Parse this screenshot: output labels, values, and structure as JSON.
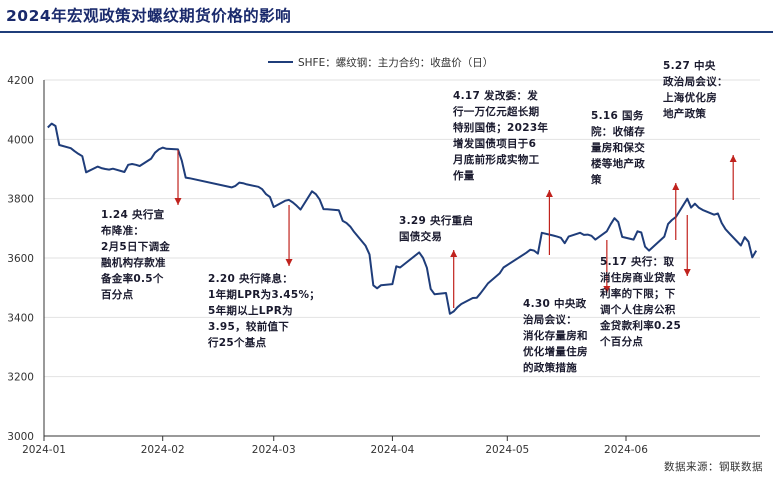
{
  "title": "2024年宏观政策对螺纹期货价格的影响",
  "source": "数据来源：钢联数据",
  "colors": {
    "line": "#1f3d7a",
    "arrow": "#c0221d",
    "title": "#1a2a6c"
  },
  "chart_data": {
    "type": "line",
    "legend": "SHFE：螺纹钢：主力合约：收盘价（日）",
    "ylim": [
      3000,
      4200
    ],
    "yticks": [
      3000,
      3200,
      3400,
      3600,
      3800,
      4000,
      4200
    ],
    "xticks": [
      "2024-01",
      "2024-02",
      "2024-03",
      "2024-04",
      "2024-05",
      "2024-06"
    ],
    "x_start": "2024-01-01",
    "series": [
      {
        "name": "SHFE：螺纹钢：主力合约：收盘价（日）",
        "values": [
          [
            "2024-01-02",
            4040
          ],
          [
            "2024-01-03",
            4053
          ],
          [
            "2024-01-04",
            4045
          ],
          [
            "2024-01-05",
            3981
          ],
          [
            "2024-01-08",
            3970
          ],
          [
            "2024-01-09",
            3960
          ],
          [
            "2024-01-10",
            3951
          ],
          [
            "2024-01-11",
            3943
          ],
          [
            "2024-01-12",
            3889
          ],
          [
            "2024-01-15",
            3908
          ],
          [
            "2024-01-16",
            3903
          ],
          [
            "2024-01-17",
            3900
          ],
          [
            "2024-01-18",
            3898
          ],
          [
            "2024-01-19",
            3901
          ],
          [
            "2024-01-22",
            3890
          ],
          [
            "2024-01-23",
            3914
          ],
          [
            "2024-01-24",
            3917
          ],
          [
            "2024-01-25",
            3914
          ],
          [
            "2024-01-26",
            3910
          ],
          [
            "2024-01-29",
            3935
          ],
          [
            "2024-01-30",
            3955
          ],
          [
            "2024-01-31",
            3966
          ],
          [
            "2024-02-01",
            3972
          ],
          [
            "2024-02-02",
            3968
          ],
          [
            "2024-02-05",
            3966
          ],
          [
            "2024-02-06",
            3928
          ],
          [
            "2024-02-07",
            3871
          ],
          [
            "2024-02-08",
            3869
          ],
          [
            "2024-02-19",
            3838
          ],
          [
            "2024-02-20",
            3843
          ],
          [
            "2024-02-21",
            3854
          ],
          [
            "2024-02-22",
            3852
          ],
          [
            "2024-02-23",
            3848
          ],
          [
            "2024-02-26",
            3840
          ],
          [
            "2024-02-27",
            3832
          ],
          [
            "2024-02-28",
            3815
          ],
          [
            "2024-02-29",
            3806
          ],
          [
            "2024-03-01",
            3772
          ],
          [
            "2024-03-04",
            3793
          ],
          [
            "2024-03-05",
            3796
          ],
          [
            "2024-03-06",
            3787
          ],
          [
            "2024-03-07",
            3776
          ],
          [
            "2024-03-08",
            3763
          ],
          [
            "2024-03-11",
            3825
          ],
          [
            "2024-03-12",
            3815
          ],
          [
            "2024-03-13",
            3797
          ],
          [
            "2024-03-14",
            3765
          ],
          [
            "2024-03-15",
            3764
          ],
          [
            "2024-03-18",
            3761
          ],
          [
            "2024-03-19",
            3725
          ],
          [
            "2024-03-20",
            3718
          ],
          [
            "2024-03-21",
            3706
          ],
          [
            "2024-03-22",
            3688
          ],
          [
            "2024-03-25",
            3641
          ],
          [
            "2024-03-26",
            3612
          ],
          [
            "2024-03-27",
            3508
          ],
          [
            "2024-03-28",
            3498
          ],
          [
            "2024-03-29",
            3508
          ],
          [
            "2024-04-01",
            3512
          ],
          [
            "2024-04-02",
            3572
          ],
          [
            "2024-04-03",
            3568
          ],
          [
            "2024-04-08",
            3619
          ],
          [
            "2024-04-09",
            3600
          ],
          [
            "2024-04-10",
            3567
          ],
          [
            "2024-04-11",
            3496
          ],
          [
            "2024-04-12",
            3478
          ],
          [
            "2024-04-15",
            3482
          ],
          [
            "2024-04-16",
            3412
          ],
          [
            "2024-04-17",
            3420
          ],
          [
            "2024-04-18",
            3434
          ],
          [
            "2024-04-19",
            3445
          ],
          [
            "2024-04-22",
            3465
          ],
          [
            "2024-04-23",
            3466
          ],
          [
            "2024-04-24",
            3481
          ],
          [
            "2024-04-25",
            3498
          ],
          [
            "2024-04-26",
            3515
          ],
          [
            "2024-04-29",
            3548
          ],
          [
            "2024-04-30",
            3568
          ],
          [
            "2024-05-06",
            3618
          ],
          [
            "2024-05-07",
            3628
          ],
          [
            "2024-05-08",
            3625
          ],
          [
            "2024-05-09",
            3615
          ],
          [
            "2024-05-10",
            3685
          ],
          [
            "2024-05-13",
            3676
          ],
          [
            "2024-05-14",
            3672
          ],
          [
            "2024-05-15",
            3668
          ],
          [
            "2024-05-16",
            3650
          ],
          [
            "2024-05-17",
            3672
          ],
          [
            "2024-05-20",
            3685
          ],
          [
            "2024-05-21",
            3678
          ],
          [
            "2024-05-22",
            3679
          ],
          [
            "2024-05-23",
            3675
          ],
          [
            "2024-05-24",
            3662
          ],
          [
            "2024-05-27",
            3690
          ],
          [
            "2024-05-28",
            3714
          ],
          [
            "2024-05-29",
            3734
          ],
          [
            "2024-05-30",
            3721
          ],
          [
            "2024-05-31",
            3671
          ],
          [
            "2024-06-03",
            3662
          ],
          [
            "2024-06-04",
            3690
          ],
          [
            "2024-06-05",
            3686
          ],
          [
            "2024-06-06",
            3638
          ],
          [
            "2024-06-07",
            3625
          ],
          [
            "2024-06-11",
            3672
          ],
          [
            "2024-06-12",
            3715
          ],
          [
            "2024-06-13",
            3728
          ],
          [
            "2024-06-14",
            3738
          ],
          [
            "2024-06-17",
            3800
          ],
          [
            "2024-06-18",
            3770
          ],
          [
            "2024-06-19",
            3783
          ],
          [
            "2024-06-20",
            3770
          ],
          [
            "2024-06-21",
            3762
          ],
          [
            "2024-06-24",
            3746
          ],
          [
            "2024-06-25",
            3750
          ],
          [
            "2024-06-26",
            3718
          ],
          [
            "2024-06-27",
            3697
          ],
          [
            "2024-06-28",
            3683
          ],
          [
            "2024-07-01",
            3642
          ],
          [
            "2024-07-02",
            3670
          ],
          [
            "2024-07-03",
            3655
          ],
          [
            "2024-07-04",
            3602
          ],
          [
            "2024-07-05",
            3625
          ]
        ]
      }
    ],
    "events": [
      {
        "date": "2024-02-05",
        "direction": "down",
        "label": "1.24 央行宣\n布降准：\n2月5日下调金\n融机构存款准\n备金率0.5个\n百分点"
      },
      {
        "date": "2024-03-05",
        "direction": "down",
        "label": "2.20 央行降息：\n1年期LPR为3.45%；\n5年期以上LPR为\n3.95，较前值下\n行25个基点"
      },
      {
        "date": "2024-04-17",
        "direction": "up",
        "label": "3.29 央行重启\n国债交易"
      },
      {
        "date": "2024-05-12",
        "direction": "up",
        "label": "4.17 发改委：发\n行一万亿元超长期\n特别国债；2023年\n增发国债项目于6\n月底前形成实物工\n作量"
      },
      {
        "date": "2024-05-27",
        "direction": "down",
        "label": "4.30 中央政\n治局会议：\n消化存量房和\n优化增量住房\n的政策措施"
      },
      {
        "date": "2024-06-14",
        "direction": "up",
        "label": "5.16 国务\n院：收储存\n量房和保交\n楼等地产政\n策"
      },
      {
        "date": "2024-06-17",
        "direction": "down",
        "label": "5.17 央行：取\n消住房商业贷款\n利率的下限；下\n调个人住房公积\n金贷款利率0.25\n个百分点"
      },
      {
        "date": "2024-06-29",
        "direction": "up",
        "label": "5.27 中央\n政治局会议：\n上海优化房\n地产政策"
      }
    ]
  }
}
